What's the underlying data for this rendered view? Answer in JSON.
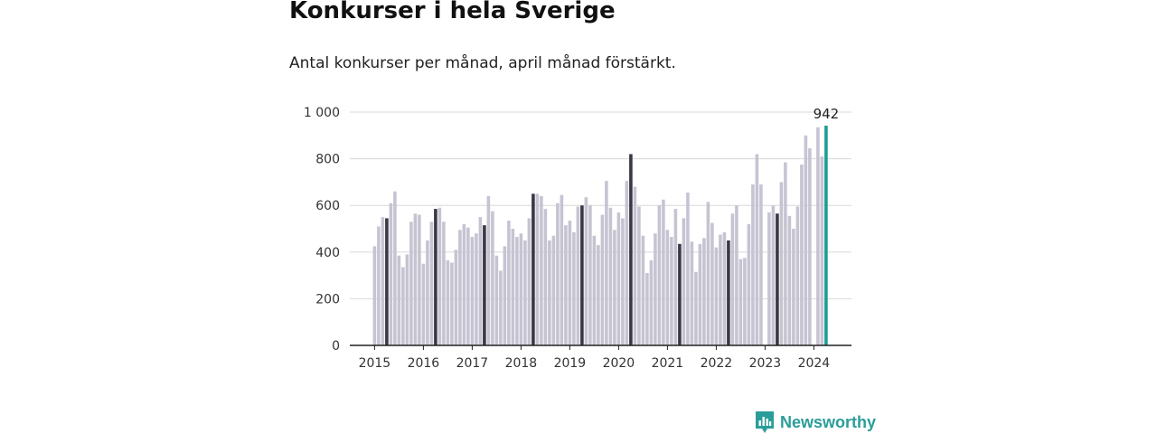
{
  "title": "Konkurser i hela Sverige",
  "subtitle": "Antal konkurser per månad, april månad förstärkt.",
  "brand": "Newsworthy",
  "colors": {
    "bar": "#c6c4d2",
    "april": "#3a3845",
    "latest": "#1a9e96",
    "grid": "#d8d8d8",
    "axis": "#222222",
    "brand": "#2a9d9a"
  },
  "chart_data": {
    "type": "bar",
    "title": "Konkurser i hela Sverige",
    "subtitle": "Antal konkurser per månad, april månad förstärkt.",
    "xlabel": "",
    "ylabel": "",
    "ylim": [
      0,
      1000
    ],
    "yticks": [
      0,
      200,
      400,
      600,
      800,
      1000
    ],
    "ytick_labels": [
      "0",
      "200",
      "400",
      "600",
      "800",
      "1 000"
    ],
    "xtick_labels": [
      "2015",
      "2016",
      "2017",
      "2018",
      "2019",
      "2020",
      "2021",
      "2022",
      "2023",
      "2024"
    ],
    "grid": true,
    "highlight": "april",
    "annotation": "942",
    "series": [
      {
        "year": 2015,
        "values": [
          425,
          510,
          550,
          545,
          610,
          660,
          385,
          335,
          390,
          530,
          565,
          560
        ]
      },
      {
        "year": 2016,
        "values": [
          350,
          450,
          530,
          585,
          590,
          530,
          365,
          355,
          410,
          495,
          520,
          505
        ]
      },
      {
        "year": 2017,
        "values": [
          465,
          480,
          550,
          515,
          640,
          575,
          385,
          320,
          425,
          535,
          500,
          465
        ]
      },
      {
        "year": 2018,
        "values": [
          480,
          450,
          545,
          650,
          650,
          640,
          585,
          450,
          470,
          610,
          645,
          515
        ]
      },
      {
        "year": 2019,
        "values": [
          535,
          485,
          595,
          600,
          635,
          600,
          470,
          430,
          560,
          705,
          590,
          495
        ]
      },
      {
        "year": 2020,
        "values": [
          570,
          545,
          705,
          820,
          680,
          595,
          470,
          310,
          365,
          480,
          600,
          625
        ]
      },
      {
        "year": 2021,
        "values": [
          495,
          465,
          585,
          435,
          545,
          655,
          445,
          315,
          435,
          460,
          615,
          525
        ]
      },
      {
        "year": 2022,
        "values": [
          420,
          475,
          485,
          450,
          565,
          600,
          370,
          375,
          520,
          690,
          820,
          690
        ]
      },
      {
        "year": 2023,
        "values": [
          null,
          570,
          600,
          565,
          700,
          785,
          555,
          500,
          595,
          775,
          900,
          845
        ]
      },
      {
        "year": 2024,
        "values": [
          null,
          935,
          810,
          942
        ]
      }
    ]
  }
}
